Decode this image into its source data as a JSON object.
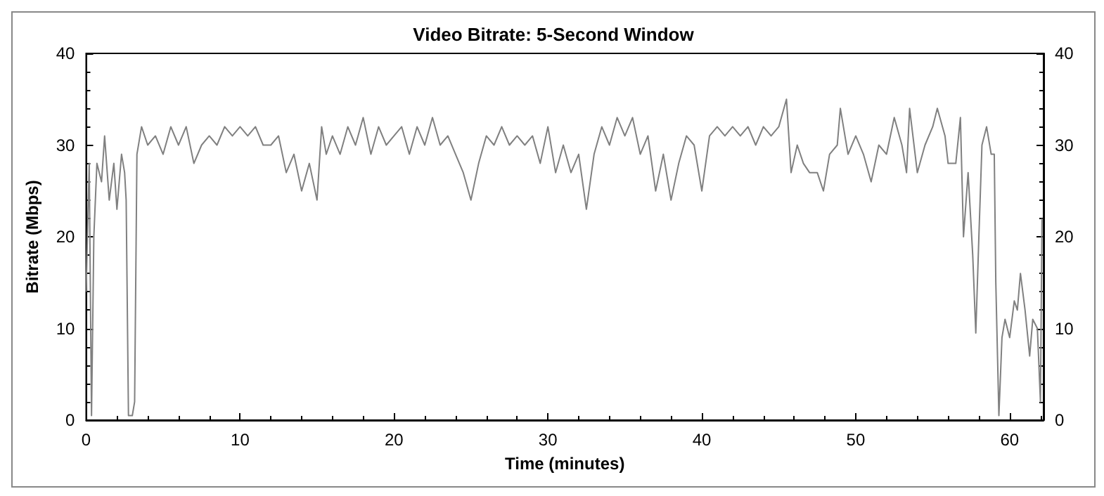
{
  "chart_data": {
    "type": "line",
    "title": "Video Bitrate: 5-Second Window",
    "xlabel": "Time (minutes)",
    "ylabel": "Bitrate (Mbps)",
    "x": [
      0,
      0.2,
      0.35,
      0.5,
      0.7,
      1,
      1.2,
      1.5,
      1.8,
      2,
      2.3,
      2.5,
      2.6,
      2.75,
      3,
      3.15,
      3.3,
      3.6,
      4,
      4.5,
      5,
      5.5,
      6,
      6.5,
      7,
      7.5,
      8,
      8.5,
      9,
      9.5,
      10,
      10.5,
      11,
      11.5,
      12,
      12.5,
      13,
      13.5,
      14,
      14.5,
      15,
      15.3,
      15.6,
      16,
      16.5,
      17,
      17.5,
      18,
      18.5,
      19,
      19.5,
      20,
      20.5,
      21,
      21.5,
      22,
      22.5,
      23,
      23.5,
      24,
      24.5,
      25,
      25.5,
      26,
      26.5,
      27,
      27.5,
      28,
      28.5,
      29,
      29.5,
      30,
      30.5,
      31,
      31.5,
      32,
      32.5,
      33,
      33.5,
      34,
      34.5,
      35,
      35.5,
      36,
      36.5,
      37,
      37.5,
      38,
      38.5,
      39,
      39.5,
      40,
      40.5,
      41,
      41.5,
      42,
      42.5,
      43,
      43.5,
      44,
      44.5,
      45,
      45.5,
      45.8,
      46.2,
      46.6,
      47,
      47.5,
      47.9,
      48.3,
      48.8,
      49,
      49.5,
      50,
      50.5,
      51,
      51.5,
      52,
      52.5,
      53,
      53.3,
      53.5,
      54,
      54.5,
      55,
      55.3,
      55.8,
      56,
      56.5,
      56.8,
      57,
      57.3,
      57.6,
      57.8,
      58,
      58.2,
      58.5,
      58.8,
      59,
      59.1,
      59.3,
      59.5,
      59.7,
      60,
      60.3,
      60.5,
      60.7,
      61,
      61.3,
      61.5,
      61.8,
      62,
      62.1
    ],
    "series": [
      {
        "color": "#808080",
        "values": [
          14,
          28,
          0.5,
          20,
          28,
          26,
          31,
          24,
          28,
          23,
          29,
          27,
          24,
          0.5,
          0.5,
          2,
          29,
          32,
          30,
          31,
          29,
          32,
          30,
          32,
          28,
          30,
          31,
          30,
          32,
          31,
          32,
          31,
          32,
          30,
          30,
          31,
          27,
          29,
          25,
          28,
          24,
          32,
          29,
          31,
          29,
          32,
          30,
          33,
          29,
          32,
          30,
          31,
          32,
          29,
          32,
          30,
          33,
          30,
          31,
          29,
          27,
          24,
          28,
          31,
          30,
          32,
          30,
          31,
          30,
          31,
          28,
          32,
          27,
          30,
          27,
          29,
          23,
          29,
          32,
          30,
          33,
          31,
          33,
          29,
          31,
          25,
          29,
          24,
          28,
          31,
          30,
          25,
          31,
          32,
          31,
          32,
          31,
          32,
          30,
          32,
          31,
          32,
          35,
          27,
          30,
          28,
          27,
          27,
          25,
          29,
          30,
          34,
          29,
          31,
          29,
          26,
          30,
          29,
          33,
          30,
          27,
          34,
          27,
          30,
          32,
          34,
          31,
          28,
          28,
          33,
          20,
          27,
          18,
          9.5,
          20,
          30,
          32,
          29,
          29,
          15,
          0.5,
          9,
          11,
          9,
          13,
          12,
          16,
          12,
          7,
          11,
          10,
          2,
          22
        ]
      }
    ],
    "xlim": [
      0,
      62.2
    ],
    "xticks": [
      0,
      10,
      20,
      30,
      40,
      50,
      60
    ],
    "ylim": [
      0,
      40
    ],
    "yticks": [
      0,
      10,
      20,
      30,
      40
    ],
    "y2lim": [
      0,
      40
    ],
    "y2ticks": [
      0,
      10,
      20,
      30,
      40
    ],
    "grid": false,
    "marker": "none",
    "line_style": "solid"
  }
}
